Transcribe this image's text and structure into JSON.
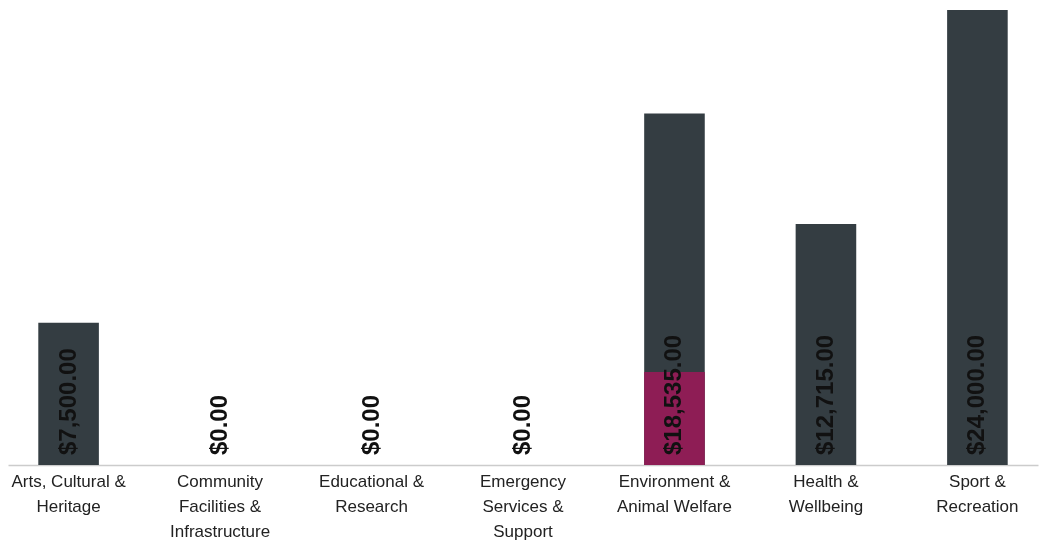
{
  "chart_data": {
    "type": "bar",
    "categories": [
      "Arts, Cultural & Heritage",
      "Community Facilities & Infrastructure",
      "Educational & Research",
      "Emergency Services & Support",
      "Environment & Animal Welfare",
      "Health & Wellbeing",
      "Sport & Recreation"
    ],
    "series": [
      {
        "color": "#343d42",
        "values": [
          7500,
          0,
          0,
          0,
          18535,
          12715,
          24000
        ],
        "value_labels": [
          "$7,500.00",
          "$0.00",
          "$0.00",
          "$0.00",
          "$18,535.00",
          "$12,715.00",
          "$24,000.00"
        ]
      },
      {
        "color": "#8e1d55",
        "values": [
          0,
          0,
          0,
          0,
          4900,
          0,
          0
        ]
      }
    ],
    "grid": false
  }
}
